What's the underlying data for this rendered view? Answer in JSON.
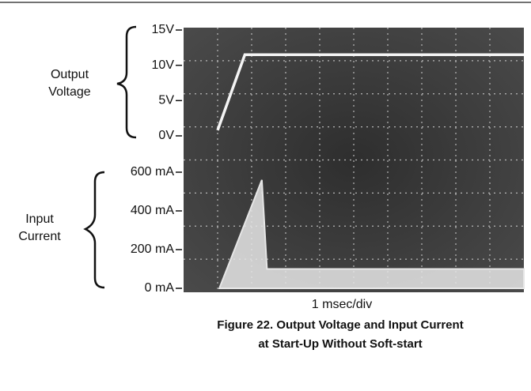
{
  "chart_data": [
    {
      "type": "line",
      "ylabel": [
        "Output",
        "Voltage"
      ],
      "x": [
        1.0,
        1.8,
        10
      ],
      "xlim": [
        0,
        10
      ],
      "series": [
        {
          "color": "#f4f4f4",
          "values": [
            0.8,
            11.5,
            11.5
          ]
        }
      ],
      "ylim": [
        0,
        15
      ],
      "yticks": [
        {
          "value": 15,
          "label": "15V"
        },
        {
          "value": 10,
          "label": "10V"
        },
        {
          "value": 5,
          "label": "5V"
        },
        {
          "value": 0,
          "label": "0V"
        }
      ]
    },
    {
      "type": "area",
      "ylabel": [
        "Input",
        "Current"
      ],
      "xlabel": "1 msec/div",
      "x": [
        1.05,
        2.3,
        2.45,
        10
      ],
      "xlim": [
        0,
        10
      ],
      "series": [
        {
          "color": "#e6e6e6",
          "values": [
            0,
            560,
            100,
            100
          ]
        }
      ],
      "ylim": [
        0,
        600
      ],
      "yticks": [
        {
          "value": 600,
          "label": "600 mA"
        },
        {
          "value": 400,
          "label": "400 mA"
        },
        {
          "value": 200,
          "label": "200 mA"
        },
        {
          "value": 0,
          "label": "0 mA"
        }
      ]
    }
  ],
  "figure": {
    "caption": [
      "Figure 22. Output Voltage and Input Current",
      "at Start-Up Without Soft-start"
    ]
  }
}
